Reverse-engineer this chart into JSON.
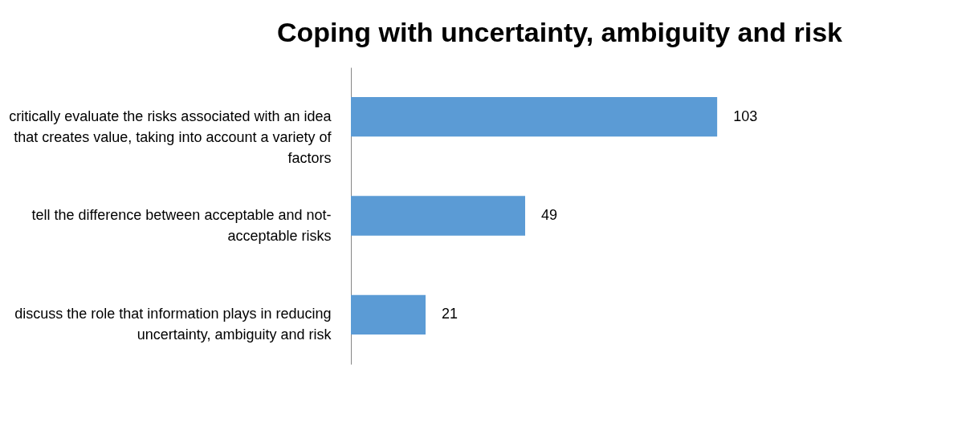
{
  "chart_data": {
    "type": "bar",
    "orientation": "horizontal",
    "title": "Coping with uncertainty, ambiguity and risk",
    "categories": [
      "critically evaluate the risks associated with an idea that creates value, taking into account a variety of factors",
      "tell the difference between acceptable and not-acceptable risks",
      "discuss the role that information plays in reducing uncertainty, ambiguity and risk"
    ],
    "values": [
      103,
      49,
      21
    ],
    "color": "#5b9bd5",
    "data_labels": true,
    "grid": false
  }
}
